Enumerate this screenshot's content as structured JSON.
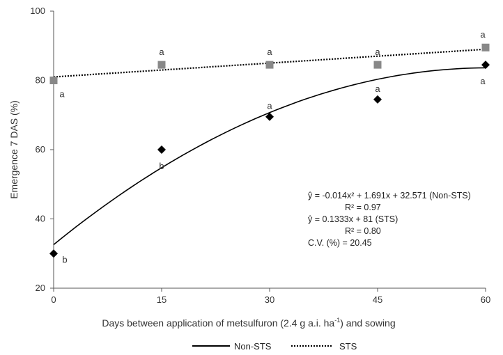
{
  "chart_data": {
    "type": "scatter",
    "xlabel": "Days between application of metsulfuron (2.4 g a.i. ha",
    "xlabel_sup": "-1",
    "xlabel_tail": ") and sowing",
    "ylabel": "Emergence 7 DAS (%)",
    "xlim": [
      0,
      60
    ],
    "ylim": [
      20,
      100
    ],
    "xticks": [
      "0",
      "15",
      "30",
      "45",
      "60"
    ],
    "yticks": [
      "20",
      "40",
      "60",
      "80",
      "100"
    ],
    "grid": false,
    "legend_position": "bottom-center",
    "series": [
      {
        "name": "Non-STS",
        "color": "#000000",
        "marker": "diamond",
        "line_style": "solid",
        "x": [
          0,
          15,
          30,
          45,
          60
        ],
        "y": [
          30,
          60,
          69.5,
          74.5,
          84.5
        ],
        "labels": [
          "b",
          "b",
          "a",
          "a",
          "a"
        ],
        "fit": {
          "type": "quadratic",
          "a": -0.014,
          "b": 1.691,
          "c": 32.571
        }
      },
      {
        "name": "STS",
        "color": "#888888",
        "marker": "square",
        "line_style": "dotted",
        "x": [
          0,
          15,
          30,
          45,
          60
        ],
        "y": [
          80,
          84.5,
          84.5,
          84.5,
          89.5
        ],
        "labels": [
          "a",
          "a",
          "a",
          "a",
          "a"
        ],
        "fit": {
          "type": "linear",
          "m": 0.1333,
          "c": 81
        }
      }
    ],
    "annotations": [
      "ŷ = -0.014x² + 1.691x + 32.571  (Non-STS)",
      "R² = 0.97",
      "ŷ = 0.1333x + 81 (STS)",
      "R² = 0.80",
      "C.V. (%) = 20.45"
    ]
  }
}
